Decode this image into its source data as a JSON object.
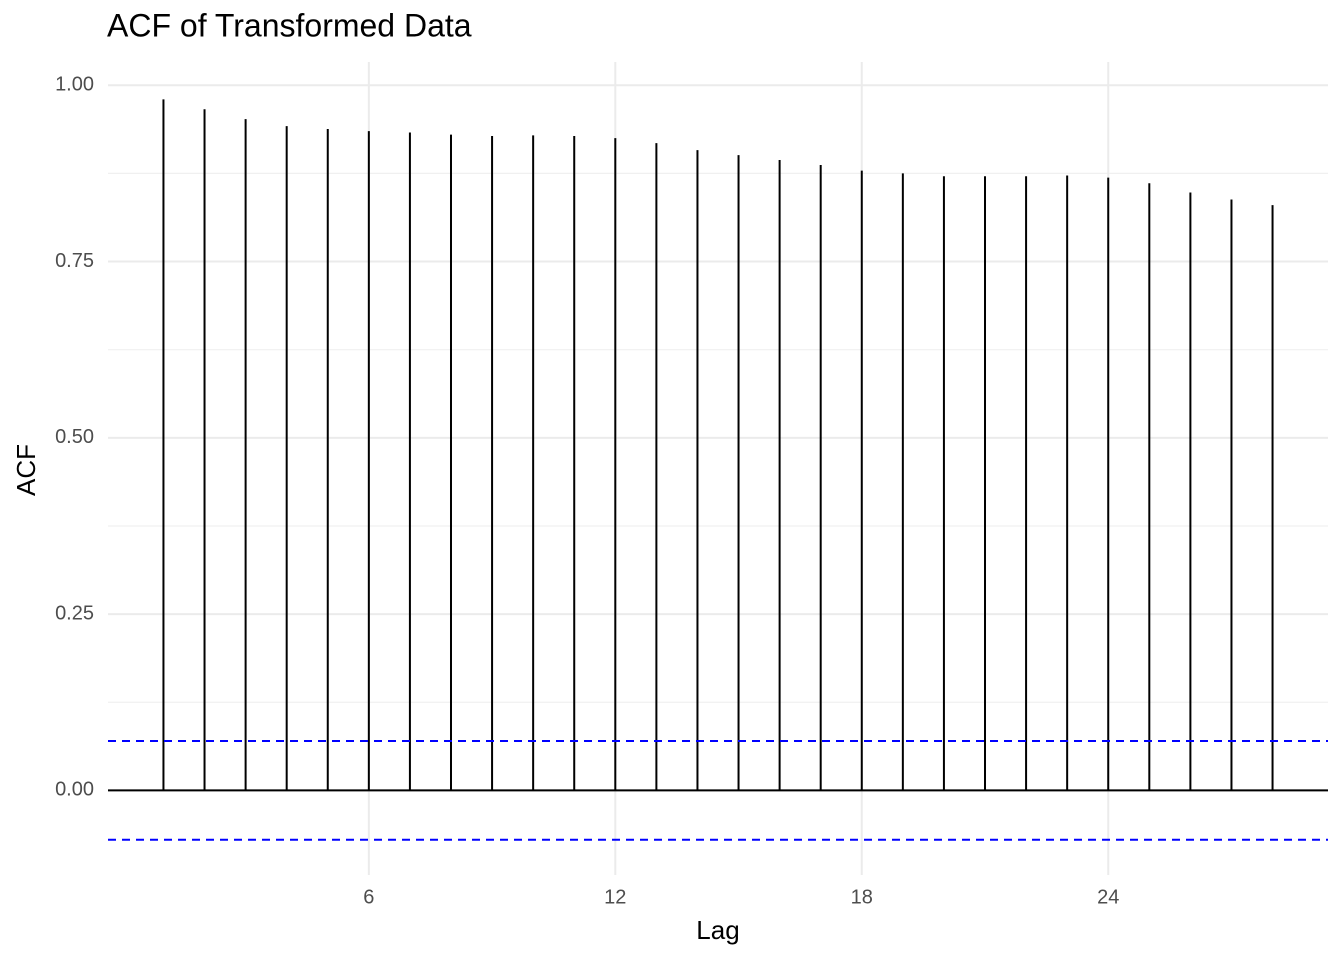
{
  "chart_data": {
    "type": "acf",
    "title": "ACF of Transformed Data",
    "x_label": "Lag",
    "y_label": "ACF",
    "x": [
      1,
      2,
      3,
      4,
      5,
      6,
      7,
      8,
      9,
      10,
      11,
      12,
      13,
      14,
      15,
      16,
      17,
      18,
      19,
      20,
      21,
      22,
      23,
      24,
      25,
      26,
      27,
      28
    ],
    "values": [
      0.98,
      0.966,
      0.952,
      0.942,
      0.938,
      0.935,
      0.933,
      0.93,
      0.928,
      0.929,
      0.928,
      0.925,
      0.918,
      0.908,
      0.901,
      0.894,
      0.887,
      0.879,
      0.875,
      0.871,
      0.871,
      0.871,
      0.872,
      0.869,
      0.861,
      0.848,
      0.838,
      0.83
    ],
    "color": "#000000",
    "conf_limits": [
      0.07,
      -0.07
    ],
    "conf_color": "#0000ff",
    "xlim": [
      -0.35,
      29.35
    ],
    "xticks": [
      6,
      12,
      18,
      24
    ],
    "ylim": [
      -0.12,
      1.033
    ],
    "yticks": [
      {
        "value": 0,
        "label": "0.00"
      },
      {
        "value": 0.25,
        "label": "0.25"
      },
      {
        "value": 0.5,
        "label": "0.50"
      },
      {
        "value": 0.75,
        "label": "0.75"
      },
      {
        "value": 1,
        "label": "1.00"
      }
    ],
    "yminor": [
      0.125,
      0.375,
      0.625,
      0.875
    ],
    "grid": true
  }
}
